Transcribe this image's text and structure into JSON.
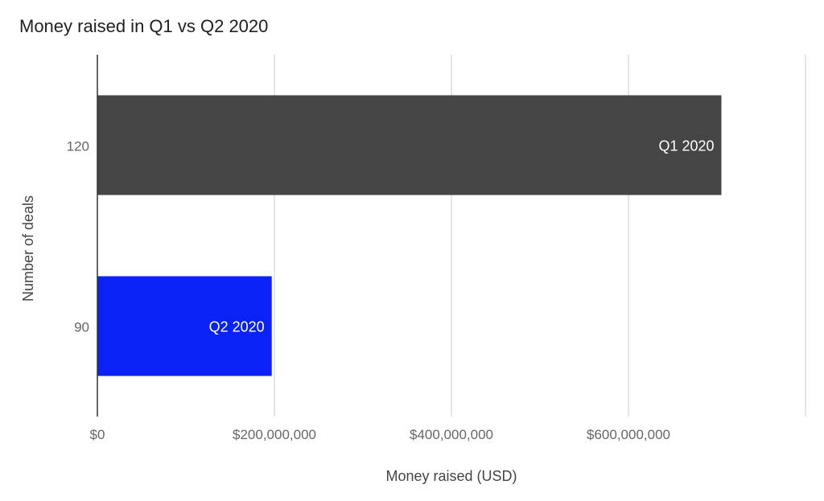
{
  "chart_data": {
    "type": "bar",
    "orientation": "horizontal",
    "title": "Money raised in Q1 vs Q2 2020",
    "xlabel": "Money raised (USD)",
    "ylabel": "Number of deals",
    "xlim": [
      0,
      800000000
    ],
    "x_ticks": [
      {
        "value": 0,
        "label": "$0"
      },
      {
        "value": 200000000,
        "label": "$200,000,000"
      },
      {
        "value": 400000000,
        "label": "$400,000,000"
      },
      {
        "value": 600000000,
        "label": "$600,000,000"
      }
    ],
    "gridline_values": [
      200000000,
      400000000,
      600000000,
      800000000
    ],
    "bars": [
      {
        "deals_label": "120",
        "name": "Q1 2020",
        "value": 705000000,
        "color": "#454545"
      },
      {
        "deals_label": "90",
        "name": "Q2 2020",
        "value": 197000000,
        "color": "#0a22f5"
      }
    ],
    "grid": true,
    "legend": "none"
  }
}
